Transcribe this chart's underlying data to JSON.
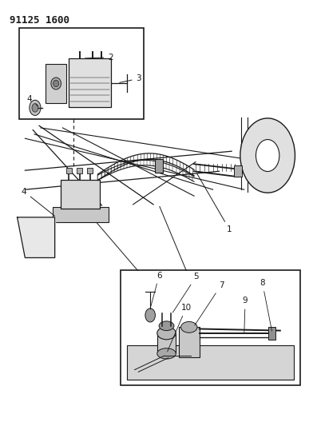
{
  "title": "91125 1600",
  "bg_color": "#ffffff",
  "line_color": "#1a1a1a",
  "fig_width": 3.92,
  "fig_height": 5.33,
  "dpi": 100,
  "title_fontsize": 9,
  "label_fontsize": 7.5
}
